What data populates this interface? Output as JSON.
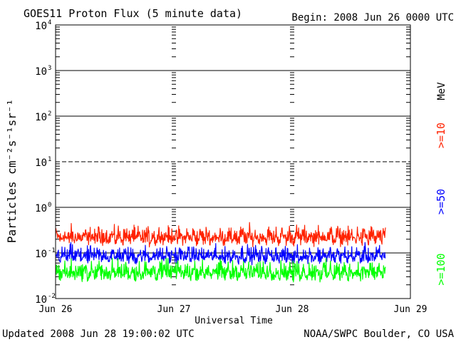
{
  "chart_data": {
    "type": "line",
    "title": "GOES11 Proton Flux (5 minute data)",
    "begin_label": "Begin: 2008 Jun 26 0000 UTC",
    "xlabel": "Universal Time",
    "ylabel": "Particles cm⁻²s⁻¹sr⁻¹",
    "y_scale": "log",
    "ylim": [
      0.01,
      10000
    ],
    "y_ticks": [
      {
        "base": "10",
        "exp": "4"
      },
      {
        "base": "10",
        "exp": "3"
      },
      {
        "base": "10",
        "exp": "2"
      },
      {
        "base": "10",
        "exp": "1"
      },
      {
        "base": "10",
        "exp": "0"
      },
      {
        "base": "10",
        "exp": "-1"
      },
      {
        "base": "10",
        "exp": "-2"
      }
    ],
    "x_ticks": [
      "Jun 26",
      "Jun 27",
      "Jun 28",
      "Jun 29"
    ],
    "xlim_days": [
      0,
      3
    ],
    "data_end_day": 2.79,
    "unit_label": "MeV",
    "legend_placement": "right-vertical",
    "series": [
      {
        "name": ">=10",
        "color": "#ff2200",
        "typical_min": 0.15,
        "typical_max": 0.5
      },
      {
        "name": ">=50",
        "color": "#0000ff",
        "typical_min": 0.06,
        "typical_max": 0.18
      },
      {
        "name": ">=100",
        "color": "#00ff00",
        "typical_min": 0.025,
        "typical_max": 0.09
      }
    ]
  },
  "footer": {
    "updated": "Updated 2008 Jun 28 19:00:02 UTC",
    "source": "NOAA/SWPC Boulder, CO USA"
  }
}
